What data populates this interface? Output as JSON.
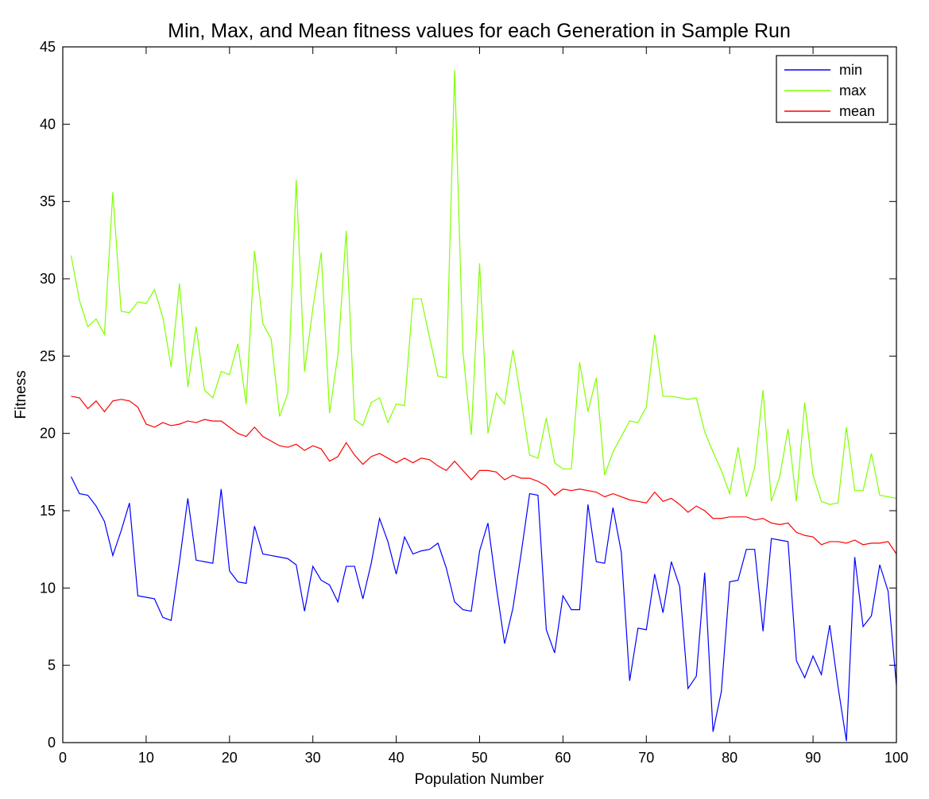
{
  "chart_data": {
    "type": "line",
    "title": "Min, Max, and Mean fitness values for each Generation in Sample Run",
    "xlabel": "Population Number",
    "ylabel": "Fitness",
    "xlim": [
      0,
      100
    ],
    "ylim": [
      0,
      45
    ],
    "xticks": [
      0,
      10,
      20,
      30,
      40,
      50,
      60,
      70,
      80,
      90,
      100
    ],
    "yticks": [
      0,
      5,
      10,
      15,
      20,
      25,
      30,
      35,
      40,
      45
    ],
    "grid": false,
    "legend_position": "top-right",
    "x_start": 1,
    "series": [
      {
        "name": "min",
        "color": "#0000ff",
        "values": [
          17.2,
          16.1,
          16.0,
          15.3,
          14.3,
          12.1,
          13.7,
          15.5,
          9.5,
          9.4,
          9.3,
          8.1,
          7.9,
          11.7,
          15.8,
          11.8,
          11.7,
          11.6,
          16.4,
          11.1,
          10.4,
          10.3,
          14.0,
          12.2,
          12.1,
          12.0,
          11.9,
          11.5,
          8.5,
          11.4,
          10.5,
          10.2,
          9.1,
          11.4,
          11.4,
          9.3,
          11.6,
          14.5,
          13.0,
          10.9,
          13.3,
          12.2,
          12.4,
          12.5,
          12.9,
          11.3,
          9.1,
          8.6,
          8.5,
          12.4,
          14.2,
          10.1,
          6.4,
          8.7,
          12.3,
          16.1,
          16.0,
          7.3,
          5.8,
          9.5,
          8.6,
          8.6,
          15.4,
          11.7,
          11.6,
          15.2,
          12.3,
          4.0,
          7.4,
          7.3,
          10.9,
          8.4,
          11.7,
          10.1,
          3.5,
          4.3,
          11.0,
          0.7,
          3.3,
          10.4,
          10.5,
          12.5,
          12.5,
          7.2,
          13.2,
          13.1,
          13.0,
          5.3,
          4.2,
          5.6,
          4.4,
          7.6,
          3.6,
          0.1,
          12.0,
          7.5,
          8.2,
          11.5,
          9.8,
          3.7
        ]
      },
      {
        "name": "max",
        "color": "#80ff00",
        "values": [
          31.5,
          28.6,
          26.9,
          27.4,
          26.4,
          35.6,
          27.9,
          27.8,
          28.5,
          28.4,
          29.3,
          27.5,
          24.3,
          29.7,
          23.0,
          26.9,
          22.8,
          22.3,
          24.0,
          23.8,
          25.8,
          21.9,
          31.8,
          27.1,
          26.1,
          21.1,
          22.6,
          36.4,
          24.0,
          28.1,
          31.7,
          21.3,
          25.1,
          33.1,
          20.9,
          20.5,
          22.0,
          22.3,
          20.7,
          21.9,
          21.8,
          28.7,
          28.7,
          26.2,
          23.7,
          23.6,
          43.5,
          25.3,
          19.9,
          31.0,
          20.0,
          22.6,
          21.9,
          25.4,
          22.1,
          18.6,
          18.4,
          21.0,
          18.1,
          17.7,
          17.7,
          24.6,
          21.4,
          23.6,
          17.3,
          18.8,
          19.8,
          20.8,
          20.7,
          21.7,
          26.4,
          22.4,
          22.4,
          22.3,
          22.2,
          22.3,
          20.1,
          18.8,
          17.6,
          16.1,
          19.1,
          15.9,
          17.8,
          22.8,
          15.6,
          17.2,
          20.3,
          15.6,
          22.0,
          17.3,
          15.6,
          15.4,
          15.5,
          20.4,
          16.3,
          16.3,
          18.7,
          16.0,
          15.9,
          15.8
        ]
      },
      {
        "name": "mean",
        "color": "#ff0000",
        "values": [
          22.4,
          22.3,
          21.6,
          22.1,
          21.4,
          22.1,
          22.2,
          22.1,
          21.7,
          20.6,
          20.4,
          20.7,
          20.5,
          20.6,
          20.8,
          20.7,
          20.9,
          20.8,
          20.8,
          20.4,
          20.0,
          19.8,
          20.4,
          19.8,
          19.5,
          19.2,
          19.1,
          19.3,
          18.9,
          19.2,
          19.0,
          18.2,
          18.5,
          19.4,
          18.6,
          18.0,
          18.5,
          18.7,
          18.4,
          18.1,
          18.4,
          18.1,
          18.4,
          18.3,
          17.9,
          17.6,
          18.2,
          17.6,
          17.0,
          17.6,
          17.6,
          17.5,
          17.0,
          17.3,
          17.1,
          17.1,
          16.9,
          16.6,
          16.0,
          16.4,
          16.3,
          16.4,
          16.3,
          16.2,
          15.9,
          16.1,
          15.9,
          15.7,
          15.6,
          15.5,
          16.2,
          15.6,
          15.8,
          15.4,
          14.9,
          15.3,
          15.0,
          14.5,
          14.5,
          14.6,
          14.6,
          14.6,
          14.4,
          14.5,
          14.2,
          14.1,
          14.2,
          13.6,
          13.4,
          13.3,
          12.8,
          13.0,
          13.0,
          12.9,
          13.1,
          12.8,
          12.9,
          12.9,
          13.0,
          12.2
        ]
      }
    ]
  }
}
